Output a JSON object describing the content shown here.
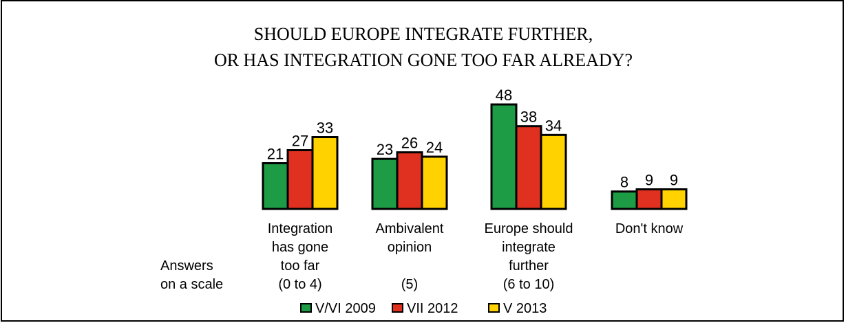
{
  "chart_data": {
    "type": "bar",
    "title_lines": [
      "SHOULD EUROPE INTEGRATE FURTHER,",
      "OR HAS INTEGRATION GONE TOO FAR ALREADY?"
    ],
    "categories": [
      [
        "Integration",
        "has gone",
        "too far",
        "(0 to 4)"
      ],
      [
        "Ambivalent",
        "opinion",
        "",
        "(5)"
      ],
      [
        "Europe should",
        "integrate",
        "further",
        "(6 to 10)"
      ],
      [
        "Don't know"
      ]
    ],
    "scale_note": [
      "Answers",
      "on a scale"
    ],
    "series": [
      {
        "name": "V/VI 2009",
        "color": "#1e9c45",
        "values": [
          21,
          23,
          48,
          8
        ]
      },
      {
        "name": "VII 2012",
        "color": "#e03020",
        "values": [
          27,
          26,
          38,
          9
        ]
      },
      {
        "name": "V 2013",
        "color": "#ffd200",
        "values": [
          33,
          24,
          34,
          9
        ]
      }
    ],
    "ylim": [
      0,
      48
    ],
    "grid": false,
    "legend_position": "bottom-center"
  }
}
